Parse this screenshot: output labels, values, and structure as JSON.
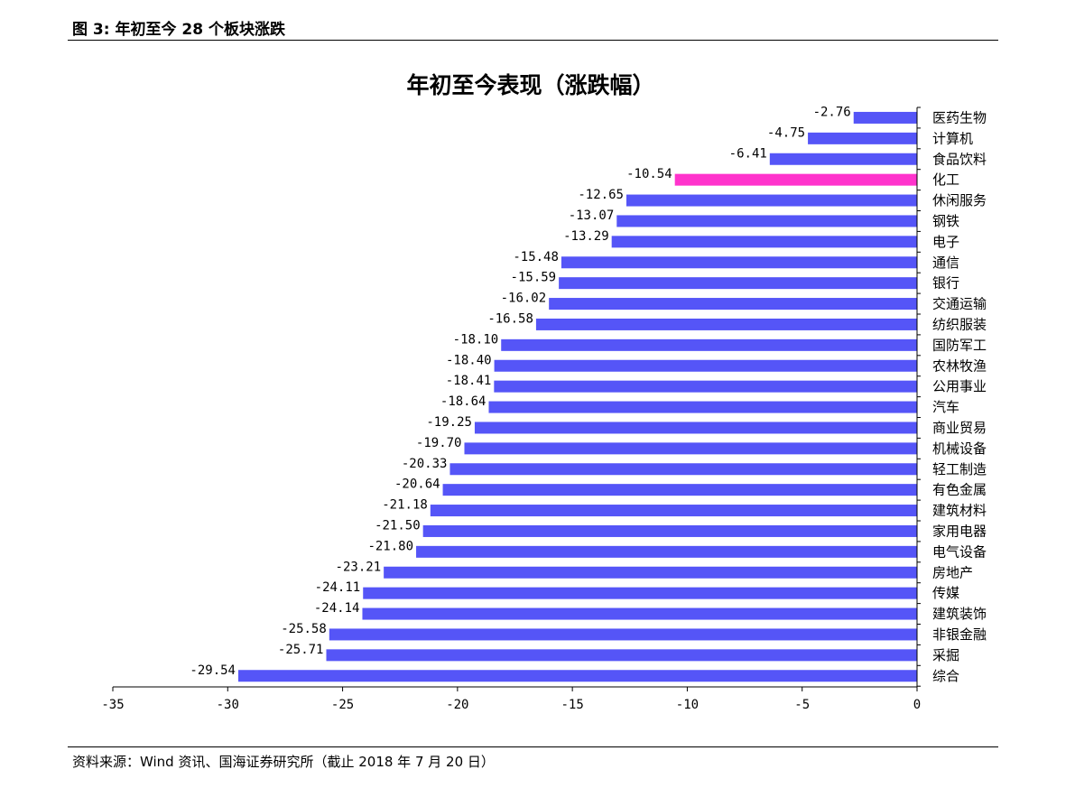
{
  "header": {
    "figure_title": "图 3:  年初至今 28 个板块涨跌"
  },
  "footer": {
    "source": "资料来源：Wind 资讯、国海证券研究所（截止 2018 年 7 月 20 日）"
  },
  "colors": {
    "bar": "#5555f7",
    "highlight": "#ff33cc",
    "axis": "#000000"
  },
  "chart_data": {
    "type": "bar",
    "orientation": "horizontal",
    "title": "年初至今表现（涨跌幅）",
    "xlim": [
      -35,
      0
    ],
    "xticks": [
      -35,
      -30,
      -25,
      -20,
      -15,
      -10,
      -5,
      0
    ],
    "grid": false,
    "highlight_category": "化工",
    "categories": [
      "医药生物",
      "计算机",
      "食品饮料",
      "化工",
      "休闲服务",
      "钢铁",
      "电子",
      "通信",
      "银行",
      "交通运输",
      "纺织服装",
      "国防军工",
      "农林牧渔",
      "公用事业",
      "汽车",
      "商业贸易",
      "机械设备",
      "轻工制造",
      "有色金属",
      "建筑材料",
      "家用电器",
      "电气设备",
      "房地产",
      "传媒",
      "建筑装饰",
      "非银金融",
      "采掘",
      "综合"
    ],
    "values": [
      -2.76,
      -4.75,
      -6.41,
      -10.54,
      -12.65,
      -13.07,
      -13.29,
      -15.48,
      -15.59,
      -16.02,
      -16.58,
      -18.1,
      -18.4,
      -18.41,
      -18.64,
      -19.25,
      -19.7,
      -20.33,
      -20.64,
      -21.18,
      -21.5,
      -21.8,
      -23.21,
      -24.11,
      -24.14,
      -25.58,
      -25.71,
      -29.54
    ],
    "value_labels": [
      "-2.76",
      "-4.75",
      "-6.41",
      "-10.54",
      "-12.65",
      "-13.07",
      "-13.29",
      "-15.48",
      "-15.59",
      "-16.02",
      "-16.58",
      "-18.10",
      "-18.40",
      "-18.41",
      "-18.64",
      "-19.25",
      "-19.70",
      "-20.33",
      "-20.64",
      "-21.18",
      "-21.50",
      "-21.80",
      "-23.21",
      "-24.11",
      "-24.14",
      "-25.58",
      "-25.71",
      "-29.54"
    ]
  }
}
